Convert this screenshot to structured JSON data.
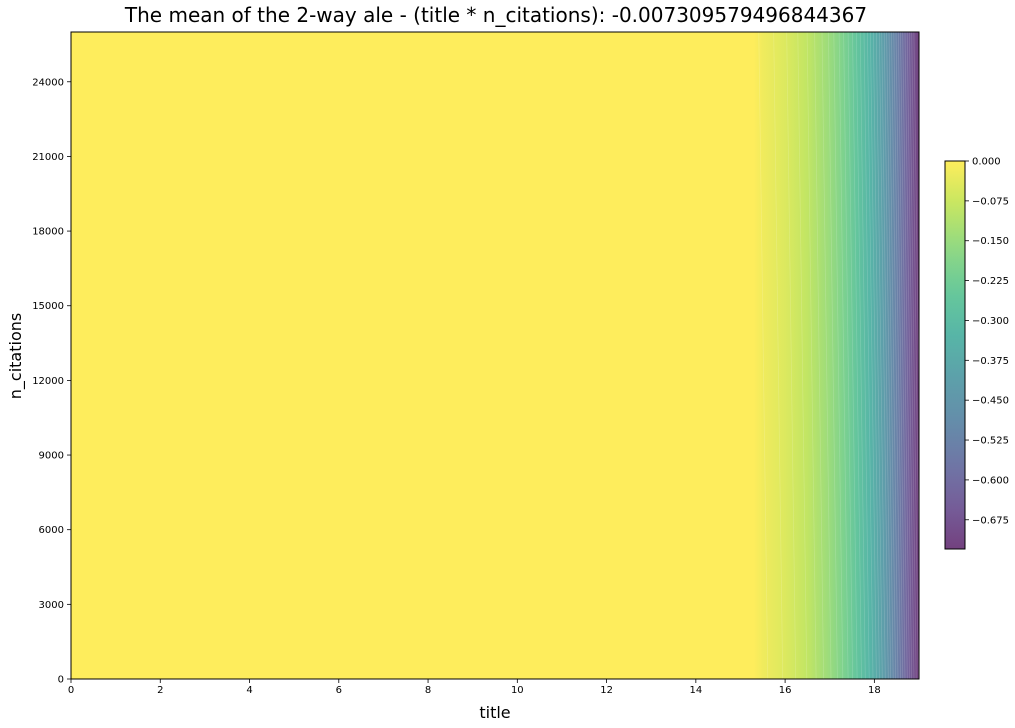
{
  "chart_data": {
    "type": "heatmap",
    "title": "The mean of the 2-way ale - (title * n_citations): -0.007309579496844367",
    "xlabel": "title",
    "ylabel": "n_citations",
    "xlim": [
      0,
      19
    ],
    "ylim": [
      0,
      26000
    ],
    "x_ticks": [
      0,
      2,
      4,
      6,
      8,
      10,
      12,
      14,
      16,
      18
    ],
    "y_ticks": [
      0,
      3000,
      6000,
      9000,
      12000,
      15000,
      18000,
      21000,
      24000
    ],
    "grid": false,
    "colormap": "viridis",
    "alpha": 0.75,
    "colorbar": {
      "range": [
        -0.73,
        0.0
      ],
      "ticks": [
        0.0,
        -0.075,
        -0.15,
        -0.225,
        -0.3,
        -0.375,
        -0.45,
        -0.525,
        -0.6,
        -0.675
      ],
      "tick_labels": [
        "0.000",
        "−0.075",
        "−0.150",
        "−0.225",
        "−0.300",
        "−0.375",
        "−0.450",
        "−0.525",
        "−0.600",
        "−0.675"
      ]
    },
    "profile": {
      "description": "approximate ALE value along title axis (flat near zero until ~15.3, then decreasing)",
      "x": [
        0,
        15.3,
        15.5,
        16.0,
        16.5,
        17.0,
        17.3,
        17.6,
        17.9,
        18.2,
        18.5,
        18.75,
        19.0
      ],
      "values": [
        0.0,
        0.0,
        -0.02,
        -0.05,
        -0.09,
        -0.15,
        -0.2,
        -0.26,
        -0.33,
        -0.42,
        -0.53,
        -0.63,
        -0.73
      ]
    },
    "mean_value": -0.007309579496844367
  }
}
